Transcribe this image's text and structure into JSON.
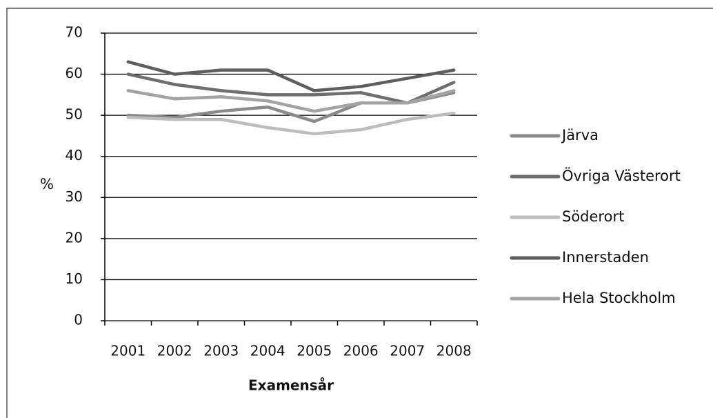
{
  "chart_data": {
    "type": "line",
    "categories": [
      "2001",
      "2002",
      "2003",
      "2004",
      "2005",
      "2006",
      "2007",
      "2008"
    ],
    "series": [
      {
        "name": "Järva",
        "color": "#8a8a8a",
        "values": [
          50,
          49.5,
          51,
          52,
          48.5,
          53,
          53,
          55.5
        ]
      },
      {
        "name": "Övriga Västerort",
        "color": "#6e6e6e",
        "values": [
          60,
          57.5,
          56,
          55,
          55,
          55.5,
          53,
          58
        ]
      },
      {
        "name": "Söderort",
        "color": "#bdbdbd",
        "values": [
          49.5,
          49,
          49,
          47,
          45.5,
          46.5,
          49,
          50.5
        ]
      },
      {
        "name": "Innerstaden",
        "color": "#5e5e5e",
        "values": [
          63,
          60,
          61,
          61,
          56,
          57,
          59,
          61
        ]
      },
      {
        "name": "Hela Stockholm",
        "color": "#a3a3a3",
        "values": [
          56,
          54,
          54.5,
          53.5,
          51,
          53,
          53,
          56
        ]
      }
    ],
    "y_label": "%",
    "x_label": "Examensår",
    "ylim": [
      0,
      70
    ],
    "yticks": [
      0,
      10,
      20,
      30,
      40,
      50,
      60,
      70
    ],
    "grid": true,
    "legend": "right"
  }
}
